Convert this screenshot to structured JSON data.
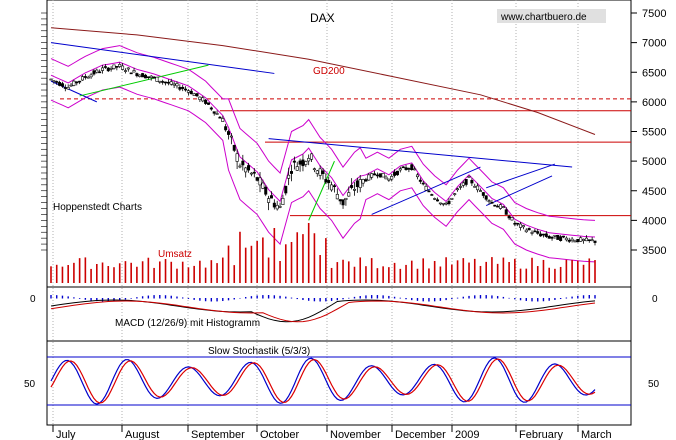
{
  "chart_data": {
    "type": "line",
    "title": "DAX",
    "source": "www.chartbuero.de",
    "provider": "Hoppenstedt Charts",
    "x_labels": [
      "July",
      "August",
      "September",
      "October",
      "November",
      "December",
      "2009",
      "February",
      "March"
    ],
    "price_panel": {
      "y_ticks": [
        7500,
        7000,
        6500,
        6000,
        5500,
        5000,
        4500,
        4000,
        3500
      ],
      "ylim": [
        3100,
        7650
      ],
      "ma_label": "GD200",
      "volume_label": "Umsatz",
      "horizontal_levels": [
        6050,
        5850,
        5320,
        4080
      ],
      "gd200": {
        "x": [
          0,
          30,
          60,
          90,
          120,
          150,
          170,
          190
        ],
        "y": [
          7250,
          7130,
          6950,
          6720,
          6420,
          6120,
          5820,
          5450
        ]
      },
      "dax_close_approx": {
        "x": [
          0,
          6,
          12,
          18,
          24,
          30,
          36,
          42,
          48,
          54,
          60,
          66,
          72,
          76,
          80,
          84,
          88,
          90,
          94,
          98,
          102,
          106,
          110,
          114,
          118,
          122,
          126,
          130,
          134,
          138,
          142,
          146,
          150,
          154,
          158,
          162,
          166,
          170,
          174,
          178,
          182,
          186,
          190
        ],
        "y": [
          6380,
          6250,
          6420,
          6550,
          6600,
          6480,
          6400,
          6300,
          6200,
          6000,
          5700,
          4950,
          4700,
          4400,
          4200,
          4900,
          5000,
          5100,
          4800,
          4600,
          4300,
          4550,
          4700,
          4800,
          4700,
          4850,
          4900,
          4600,
          4400,
          4250,
          4500,
          4700,
          4500,
          4300,
          4200,
          3950,
          3850,
          3780,
          3720,
          3700,
          3680,
          3660,
          3650
        ]
      }
    },
    "macd_panel": {
      "label": "MACD (12/26/9) mit Histogramm",
      "y_ticks": [
        0
      ]
    },
    "stochastic_panel": {
      "label": "Slow Stochastik (5/3/3)",
      "y_ticks": [
        50
      ]
    }
  }
}
